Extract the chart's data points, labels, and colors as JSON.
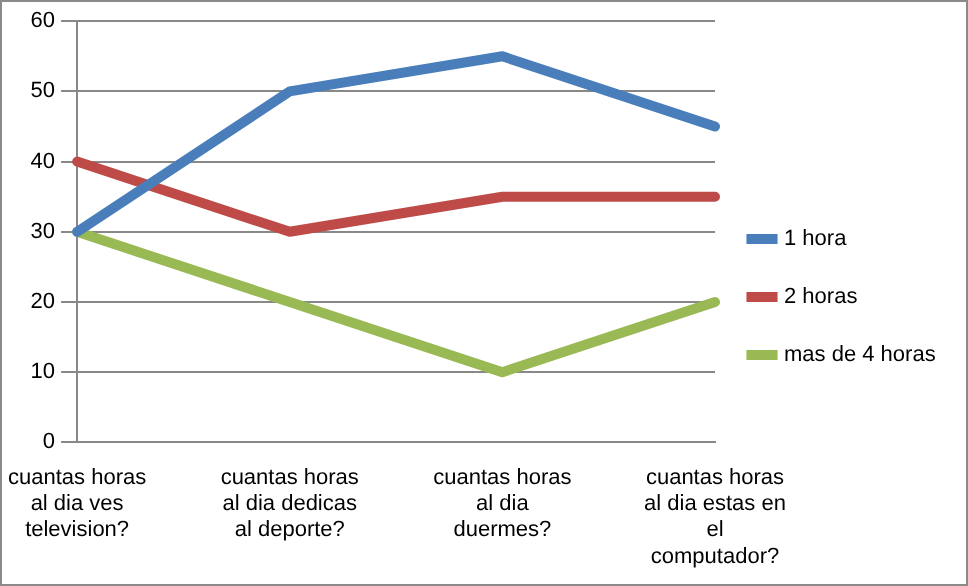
{
  "chart_data": {
    "type": "line",
    "categories": [
      "cuantas horas al dia ves television?",
      "cuantas horas al dia dedicas al deporte?",
      "cuantas horas al dia duermes?",
      "cuantas horas al dia estas en el computador?"
    ],
    "series": [
      {
        "name": "1 hora",
        "color": "#4a7ebb",
        "values": [
          30,
          50,
          55,
          45
        ]
      },
      {
        "name": "2 horas",
        "color": "#be4b48",
        "values": [
          40,
          30,
          35,
          35
        ]
      },
      {
        "name": "mas de 4 horas",
        "color": "#98b954",
        "values": [
          30,
          20,
          10,
          20
        ]
      }
    ],
    "ylim": [
      0,
      60
    ],
    "yticks": [
      0,
      10,
      20,
      30,
      40,
      50,
      60
    ],
    "grid": "y",
    "legend": "right",
    "marker": "none",
    "line_style": "solid"
  }
}
